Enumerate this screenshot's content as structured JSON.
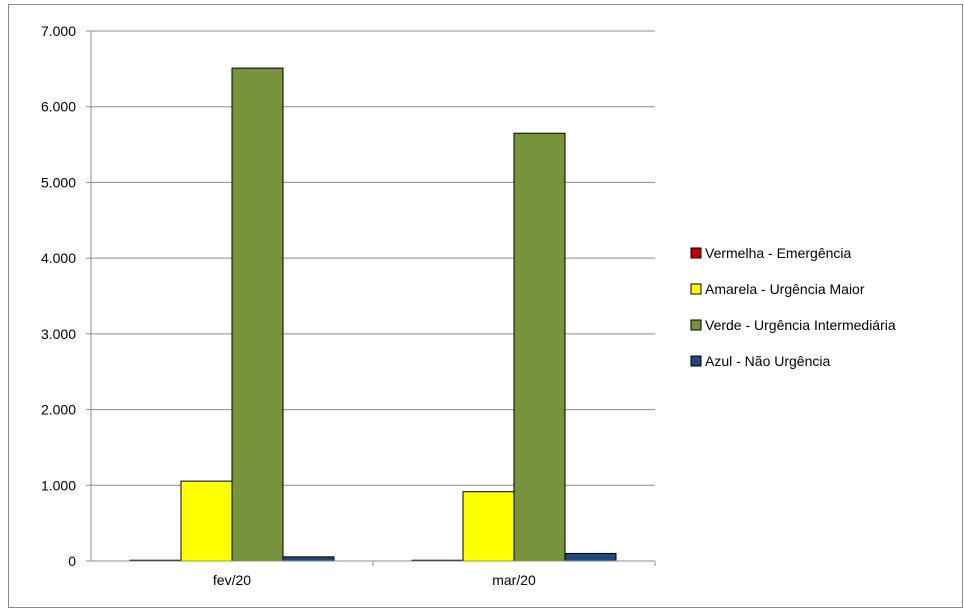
{
  "chart_data": {
    "type": "bar",
    "categories": [
      "fev/20",
      "mar/20"
    ],
    "series": [
      {
        "name": "Vermelha - Emergência",
        "color": "#c00000",
        "values": [
          10,
          10
        ]
      },
      {
        "name": "Amarela - Urgência Maior",
        "color": "#ffff00",
        "values": [
          1055,
          915
        ]
      },
      {
        "name": "Verde - Urgência Intermediária",
        "color": "#77933c",
        "values": [
          6510,
          5650
        ]
      },
      {
        "name": "Azul - Não Urgência",
        "color": "#1f497d",
        "values": [
          55,
          100
        ]
      }
    ],
    "y_ticks": [
      "0",
      "1.000",
      "2.000",
      "3.000",
      "4.000",
      "5.000",
      "6.000",
      "7.000"
    ],
    "ylim": [
      0,
      7000
    ],
    "grid": true,
    "legend_position": "right",
    "title": "",
    "xlabel": "",
    "ylabel": ""
  }
}
